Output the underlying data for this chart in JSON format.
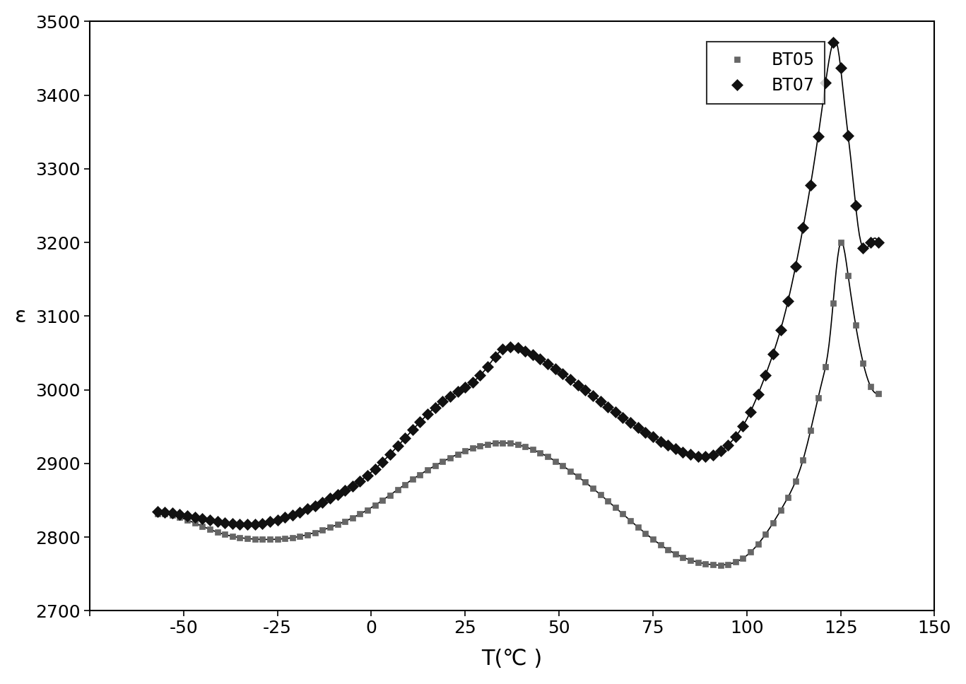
{
  "title": "",
  "xlabel": "T(℃ )",
  "ylabel": "ε",
  "xlim": [
    -75,
    150
  ],
  "ylim": [
    2700,
    3500
  ],
  "xticks": [
    -75,
    -50,
    -25,
    0,
    25,
    50,
    75,
    100,
    125,
    150
  ],
  "yticks": [
    2700,
    2800,
    2900,
    3000,
    3100,
    3200,
    3300,
    3400,
    3500
  ],
  "BT05_knots_x": [
    -57,
    -50,
    -40,
    -30,
    -20,
    -10,
    0,
    10,
    20,
    30,
    35,
    40,
    50,
    60,
    70,
    80,
    90,
    100,
    110,
    115,
    120,
    122,
    125,
    127,
    130,
    135
  ],
  "BT05_knots_y": [
    2832,
    2825,
    2805,
    2797,
    2800,
    2815,
    2840,
    2875,
    2905,
    2925,
    2928,
    2924,
    2900,
    2862,
    2818,
    2780,
    2763,
    2775,
    2845,
    2905,
    3010,
    3065,
    3200,
    3155,
    3060,
    2995
  ],
  "BT07_knots_x": [
    -57,
    -50,
    -40,
    -30,
    -20,
    -10,
    0,
    10,
    20,
    30,
    35,
    40,
    50,
    60,
    70,
    80,
    85,
    90,
    95,
    100,
    105,
    110,
    115,
    118,
    120,
    122,
    124,
    126,
    128,
    130,
    133,
    135
  ],
  "BT07_knots_y": [
    2835,
    2830,
    2820,
    2818,
    2832,
    2855,
    2888,
    2940,
    2988,
    3025,
    3055,
    3055,
    3025,
    2988,
    2952,
    2922,
    2912,
    2910,
    2925,
    2960,
    3020,
    3100,
    3220,
    3310,
    3380,
    3450,
    3470,
    3390,
    3300,
    3210,
    3200,
    3200
  ],
  "line_color": "#000000",
  "marker_color_BT05": "#666666",
  "marker_color_BT07": "#111111",
  "legend_BT05": "BT05",
  "legend_BT07": "BT07",
  "xlabel_fontsize": 22,
  "ylabel_fontsize": 22,
  "tick_fontsize": 18,
  "legend_fontsize": 17
}
